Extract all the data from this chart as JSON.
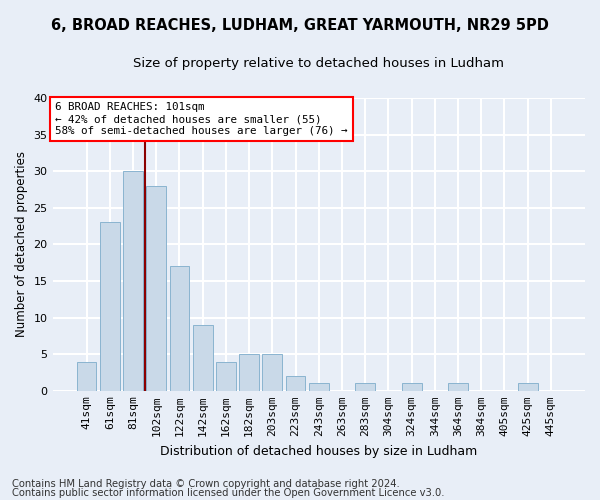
{
  "title1": "6, BROAD REACHES, LUDHAM, GREAT YARMOUTH, NR29 5PD",
  "title2": "Size of property relative to detached houses in Ludham",
  "xlabel": "Distribution of detached houses by size in Ludham",
  "ylabel": "Number of detached properties",
  "categories": [
    "41sqm",
    "61sqm",
    "81sqm",
    "102sqm",
    "122sqm",
    "142sqm",
    "162sqm",
    "182sqm",
    "203sqm",
    "223sqm",
    "243sqm",
    "263sqm",
    "283sqm",
    "304sqm",
    "324sqm",
    "344sqm",
    "364sqm",
    "384sqm",
    "405sqm",
    "425sqm",
    "445sqm"
  ],
  "values": [
    4,
    23,
    30,
    28,
    17,
    9,
    4,
    5,
    5,
    2,
    1,
    0,
    1,
    0,
    1,
    0,
    1,
    0,
    0,
    1,
    0
  ],
  "bar_color": "#c9d9e8",
  "bar_edge_color": "#8ab4d0",
  "annotation_text": "6 BROAD REACHES: 101sqm\n← 42% of detached houses are smaller (55)\n58% of semi-detached houses are larger (76) →",
  "annotation_box_color": "white",
  "annotation_box_edge_color": "red",
  "vline_color": "#8b0000",
  "ylim": [
    0,
    40
  ],
  "yticks": [
    0,
    5,
    10,
    15,
    20,
    25,
    30,
    35,
    40
  ],
  "footer1": "Contains HM Land Registry data © Crown copyright and database right 2024.",
  "footer2": "Contains public sector information licensed under the Open Government Licence v3.0.",
  "bg_color": "#e8eef7",
  "grid_color": "white",
  "title1_fontsize": 10.5,
  "title2_fontsize": 9.5,
  "xlabel_fontsize": 9,
  "ylabel_fontsize": 8.5,
  "tick_fontsize": 8,
  "annot_fontsize": 7.8,
  "footer_fontsize": 7.2
}
